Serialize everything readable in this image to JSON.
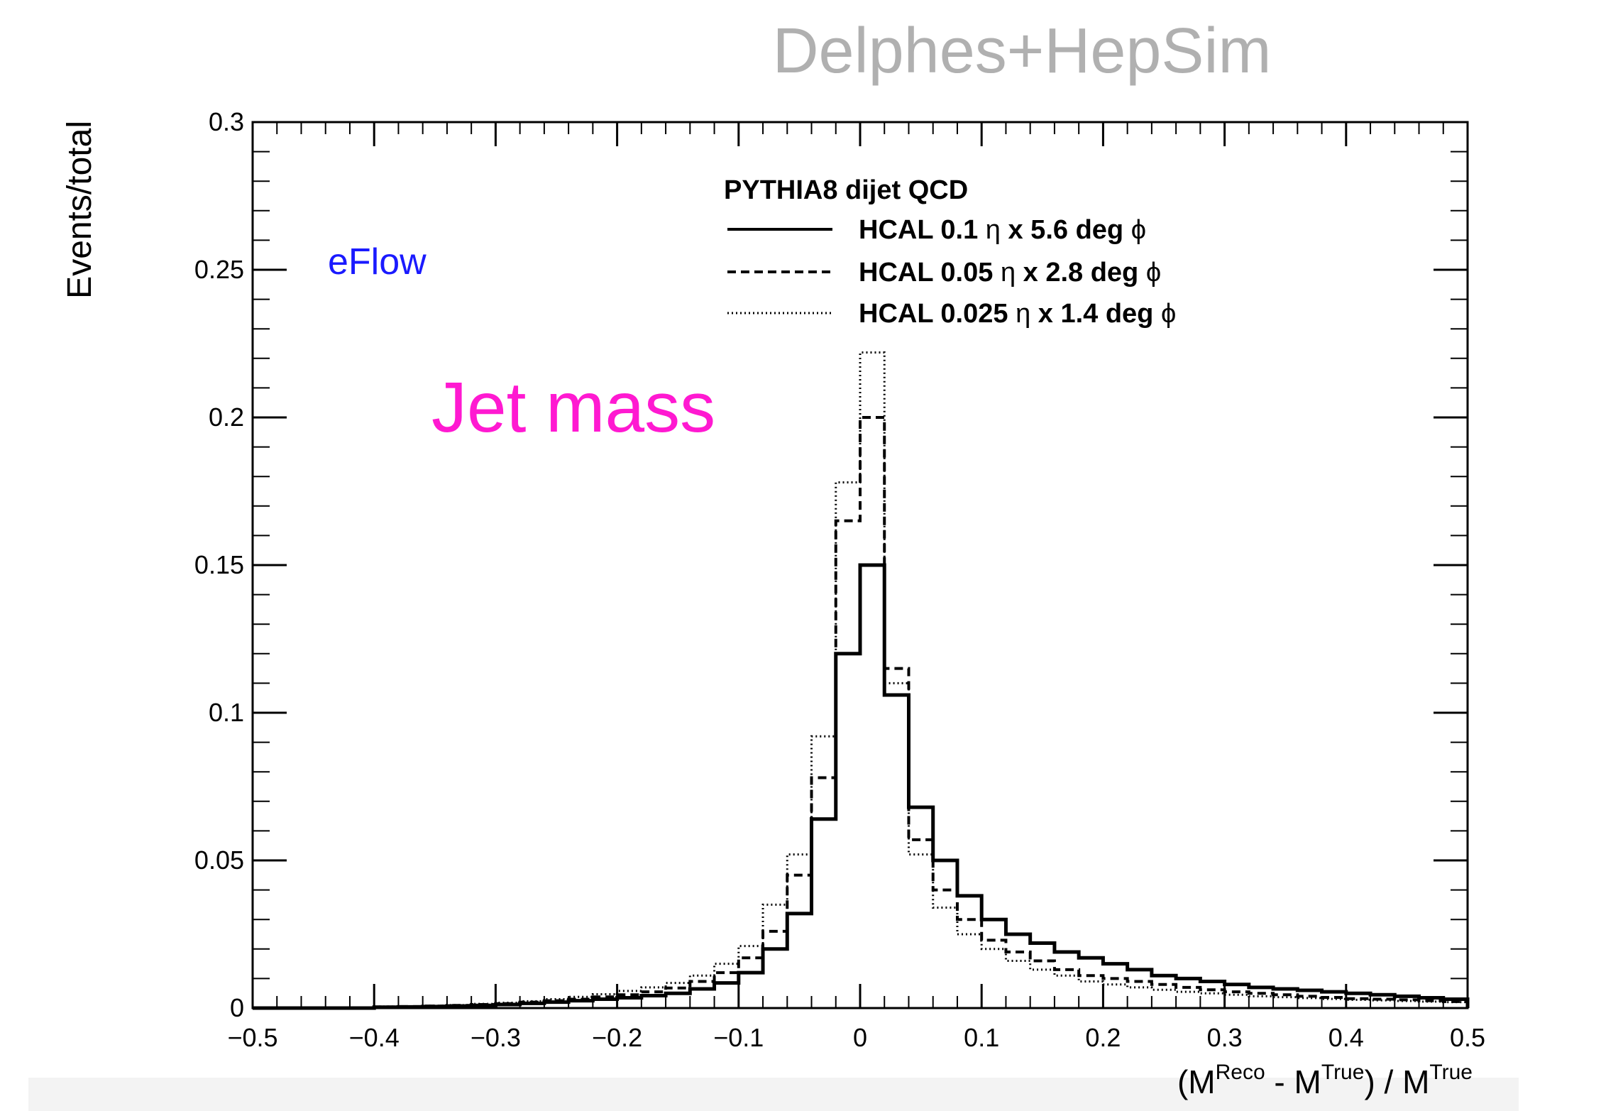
{
  "header": {
    "watermark": "Delphes+HepSim"
  },
  "annotations": {
    "eflow": {
      "text": "eFlow",
      "color": "#1a1aff"
    },
    "jet_mass": {
      "text": "Jet mass",
      "color": "#ff19d1"
    }
  },
  "legend": {
    "title": "PYTHIA8 dijet QCD",
    "entries": [
      {
        "pre": "HCAL 0.1 ",
        "eta": "η",
        "mid": " x 5.6 deg ",
        "phi": "ϕ",
        "style": "solid"
      },
      {
        "pre": "HCAL 0.05 ",
        "eta": "η",
        "mid": " x 2.8 deg  ",
        "phi": "ϕ",
        "style": "dashed"
      },
      {
        "pre": "HCAL 0.025 ",
        "eta": "η",
        "mid": " x 1.4 deg  ",
        "phi": "ϕ",
        "style": "dotted"
      }
    ]
  },
  "chart_data": {
    "type": "line",
    "title": "",
    "xlabel": {
      "parts": [
        {
          "t": "(M",
          "sup": false
        },
        {
          "t": "Reco",
          "sup": true
        },
        {
          "t": " - M",
          "sup": false
        },
        {
          "t": "True",
          "sup": true
        },
        {
          "t": ") / M",
          "sup": false
        },
        {
          "t": "True",
          "sup": true
        }
      ]
    },
    "ylabel": "Events/total",
    "xlim": [
      -0.5,
      0.5
    ],
    "ylim": [
      0,
      0.3
    ],
    "xticks": [
      -0.5,
      -0.4,
      -0.3,
      -0.2,
      -0.1,
      0,
      0.1,
      0.2,
      0.3,
      0.4,
      0.5
    ],
    "xtick_labels": [
      "−0.5",
      "−0.4",
      "−0.3",
      "−0.2",
      "−0.1",
      "0",
      "0.1",
      "0.2",
      "0.3",
      "0.4",
      "0.5"
    ],
    "yticks": [
      0,
      0.05,
      0.1,
      0.15,
      0.2,
      0.25,
      0.3
    ],
    "ytick_labels": [
      "0",
      "0.05",
      "0.1",
      "0.15",
      "0.2",
      "0.25",
      "0.3"
    ],
    "grid": false,
    "legend_position": "top-right",
    "bin_edges": [
      -0.5,
      -0.48,
      -0.46,
      -0.44,
      -0.42,
      -0.4,
      -0.38,
      -0.36,
      -0.34,
      -0.32,
      -0.3,
      -0.28,
      -0.26,
      -0.24,
      -0.22,
      -0.2,
      -0.18,
      -0.16,
      -0.14,
      -0.12,
      -0.1,
      -0.08,
      -0.06,
      -0.04,
      -0.02,
      0,
      0.02,
      0.04,
      0.06,
      0.08,
      0.1,
      0.12,
      0.14,
      0.16,
      0.18,
      0.2,
      0.22,
      0.24,
      0.26,
      0.28,
      0.3,
      0.32,
      0.34,
      0.36,
      0.38,
      0.4,
      0.42,
      0.44,
      0.46,
      0.48,
      0.5
    ],
    "series": [
      {
        "name": "HCAL 0.1 η x 5.6 deg ϕ",
        "style": "solid",
        "values": [
          0,
          0,
          0,
          0,
          0,
          0.0003,
          0.0004,
          0.0005,
          0.0007,
          0.0009,
          0.0012,
          0.0016,
          0.002,
          0.0025,
          0.003,
          0.0035,
          0.0042,
          0.005,
          0.0065,
          0.0085,
          0.012,
          0.02,
          0.032,
          0.064,
          0.12,
          0.15,
          0.106,
          0.068,
          0.05,
          0.038,
          0.03,
          0.025,
          0.022,
          0.019,
          0.017,
          0.015,
          0.013,
          0.011,
          0.01,
          0.009,
          0.008,
          0.007,
          0.0065,
          0.006,
          0.0055,
          0.005,
          0.0045,
          0.004,
          0.0035,
          0.003
        ]
      },
      {
        "name": "HCAL 0.05 η x 2.8 deg ϕ",
        "style": "dashed",
        "values": [
          0,
          0,
          0,
          0,
          0,
          0.0004,
          0.0005,
          0.0007,
          0.0009,
          0.0012,
          0.0015,
          0.002,
          0.0025,
          0.003,
          0.0038,
          0.0045,
          0.0055,
          0.0068,
          0.009,
          0.012,
          0.017,
          0.026,
          0.045,
          0.078,
          0.165,
          0.2,
          0.115,
          0.057,
          0.04,
          0.03,
          0.023,
          0.019,
          0.016,
          0.013,
          0.011,
          0.01,
          0.009,
          0.008,
          0.007,
          0.0062,
          0.0055,
          0.005,
          0.0045,
          0.004,
          0.0036,
          0.0032,
          0.003,
          0.0028,
          0.0025,
          0.0022
        ]
      },
      {
        "name": "HCAL 0.025 η x 1.4 deg ϕ",
        "style": "dotted",
        "values": [
          0,
          0,
          0,
          0,
          0,
          0.0005,
          0.0006,
          0.0008,
          0.001,
          0.0014,
          0.0018,
          0.0023,
          0.003,
          0.0038,
          0.0047,
          0.0058,
          0.007,
          0.0085,
          0.011,
          0.015,
          0.021,
          0.035,
          0.052,
          0.092,
          0.178,
          0.222,
          0.11,
          0.052,
          0.034,
          0.025,
          0.02,
          0.016,
          0.013,
          0.011,
          0.009,
          0.008,
          0.007,
          0.0062,
          0.0055,
          0.005,
          0.0045,
          0.004,
          0.0037,
          0.0034,
          0.0031,
          0.0028,
          0.0026,
          0.0024,
          0.0022,
          0.002
        ]
      }
    ]
  }
}
